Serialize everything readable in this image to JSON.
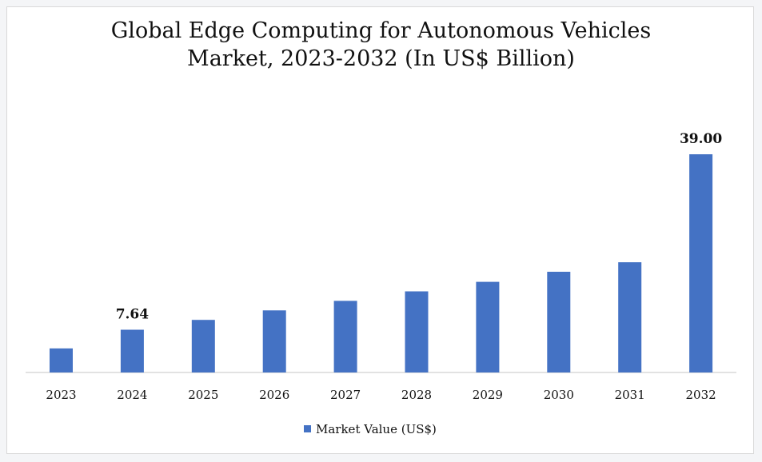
{
  "chart_data": {
    "type": "bar",
    "title": "Global Edge Computing for Autonomous Vehicles\nMarket, 2023-2032 (In US$ Billion)",
    "categories": [
      "2023",
      "2024",
      "2025",
      "2026",
      "2027",
      "2028",
      "2029",
      "2030",
      "2031",
      "2032"
    ],
    "series": [
      {
        "name": "Market Value (US$)",
        "color": "#4472c4",
        "values": [
          4.3,
          7.64,
          9.4,
          11.1,
          12.8,
          14.5,
          16.2,
          18.0,
          19.7,
          39.0
        ]
      }
    ],
    "data_labels": [
      {
        "category": "2024",
        "text": "7.64"
      },
      {
        "category": "2032",
        "text": "39.00"
      }
    ],
    "legend_position": "bottom",
    "grid": false,
    "ylim": [
      0,
      42
    ]
  }
}
